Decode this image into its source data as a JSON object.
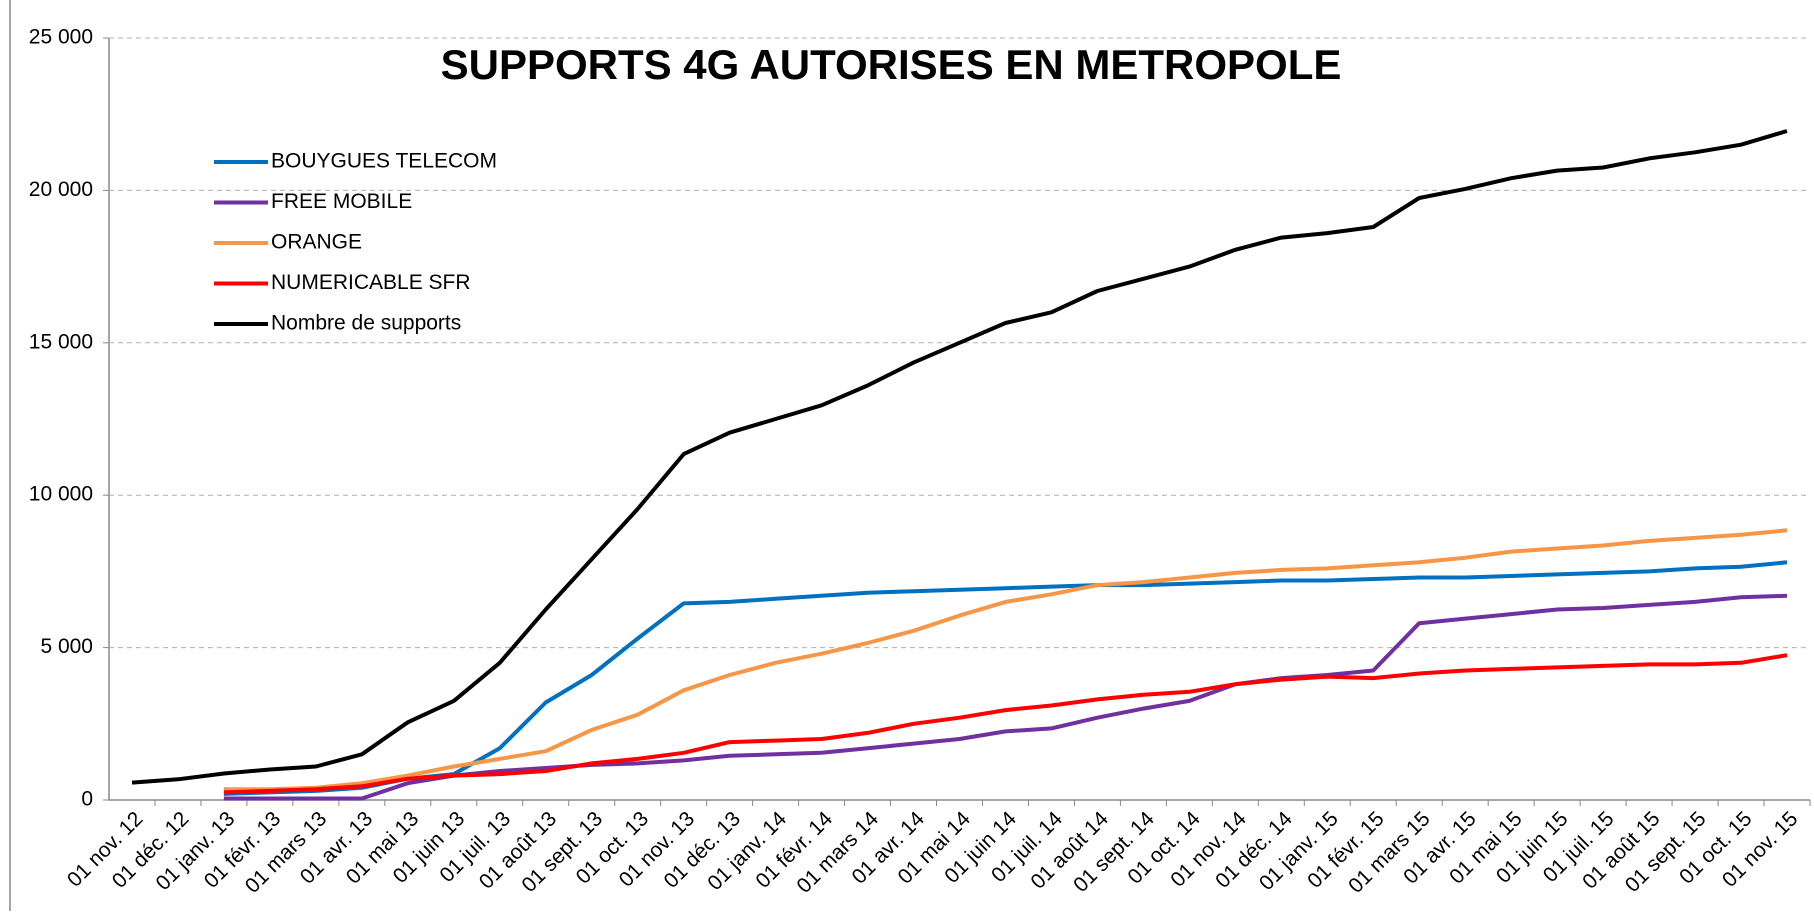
{
  "chart_data": {
    "type": "line",
    "title": "SUPPORTS 4G AUTORISES EN METROPOLE",
    "categories": [
      "01 nov. 12",
      "01 déc. 12",
      "01 janv. 13",
      "01 févr. 13",
      "01 mars 13",
      "01 avr. 13",
      "01 mai 13",
      "01 juin 13",
      "01 juil. 13",
      "01 août 13",
      "01 sept. 13",
      "01 oct. 13",
      "01 nov. 13",
      "01 déc. 13",
      "01 janv. 14",
      "01 févr. 14",
      "01 mars 14",
      "01 avr. 14",
      "01 mai 14",
      "01 juin 14",
      "01 juil. 14",
      "01 août 14",
      "01 sept. 14",
      "01 oct. 14",
      "01 nov. 14",
      "01 déc. 14",
      "01 janv. 15",
      "01 févr. 15",
      "01 mars 15",
      "01 avr. 15",
      "01 mai 15",
      "01 juin 15",
      "01 juil. 15",
      "01 août 15",
      "01 sept. 15",
      "01 oct. 15",
      "01 nov. 15"
    ],
    "series": [
      {
        "name": "BOUYGUES TELECOM",
        "color": "#0070c0",
        "values": [
          null,
          null,
          200,
          250,
          300,
          400,
          700,
          850,
          1700,
          3200,
          4100,
          5300,
          6450,
          6500,
          6600,
          6700,
          6800,
          6850,
          6900,
          6950,
          7000,
          7050,
          7050,
          7100,
          7150,
          7200,
          7200,
          7250,
          7300,
          7300,
          7350,
          7400,
          7450,
          7500,
          7600,
          7650,
          7800
        ]
      },
      {
        "name": "FREE MOBILE",
        "color": "#7030a0",
        "values": [
          null,
          null,
          50,
          50,
          50,
          50,
          550,
          800,
          950,
          1050,
          1150,
          1200,
          1300,
          1450,
          1500,
          1550,
          1700,
          1850,
          2000,
          2250,
          2350,
          2700,
          3000,
          3250,
          3800,
          4000,
          4100,
          4250,
          5800,
          5950,
          6100,
          6250,
          6300,
          6400,
          6500,
          6650,
          6700
        ]
      },
      {
        "name": "ORANGE",
        "color": "#f79646",
        "values": [
          null,
          null,
          350,
          350,
          400,
          550,
          800,
          1100,
          1350,
          1600,
          2300,
          2800,
          3600,
          4100,
          4500,
          4800,
          5150,
          5550,
          6050,
          6500,
          6750,
          7050,
          7150,
          7300,
          7450,
          7550,
          7600,
          7700,
          7800,
          7950,
          8150,
          8250,
          8350,
          8500,
          8600,
          8700,
          8850
        ]
      },
      {
        "name": "NUMERICABLE SFR",
        "color": "#ff0000",
        "values": [
          null,
          null,
          250,
          300,
          350,
          450,
          700,
          800,
          850,
          950,
          1200,
          1350,
          1550,
          1900,
          1950,
          2000,
          2200,
          2500,
          2700,
          2950,
          3100,
          3300,
          3450,
          3550,
          3800,
          3950,
          4050,
          4000,
          4150,
          4250,
          4300,
          4350,
          4400,
          4450,
          4450,
          4500,
          4750
        ]
      },
      {
        "name": "Nombre de supports",
        "color": "#000000",
        "values": [
          570,
          680,
          870,
          1000,
          1100,
          1500,
          2550,
          3250,
          4500,
          6250,
          7900,
          9550,
          11350,
          12050,
          12500,
          12950,
          13600,
          14350,
          15000,
          15650,
          16000,
          16700,
          17100,
          17500,
          18050,
          18450,
          18600,
          18800,
          19750,
          20050,
          20400,
          20650,
          20750,
          21050,
          21250,
          21500,
          21950
        ]
      }
    ],
    "ylim": [
      0,
      25000
    ],
    "yticks": [
      0,
      {
        "value": 5000,
        "label": "5 000"
      },
      {
        "value": 10000,
        "label": "10 000"
      },
      {
        "value": 15000,
        "label": "15 000"
      },
      {
        "value": 20000,
        "label": "20 000"
      },
      {
        "value": 25000,
        "label": "25 000"
      }
    ],
    "grid": true
  }
}
